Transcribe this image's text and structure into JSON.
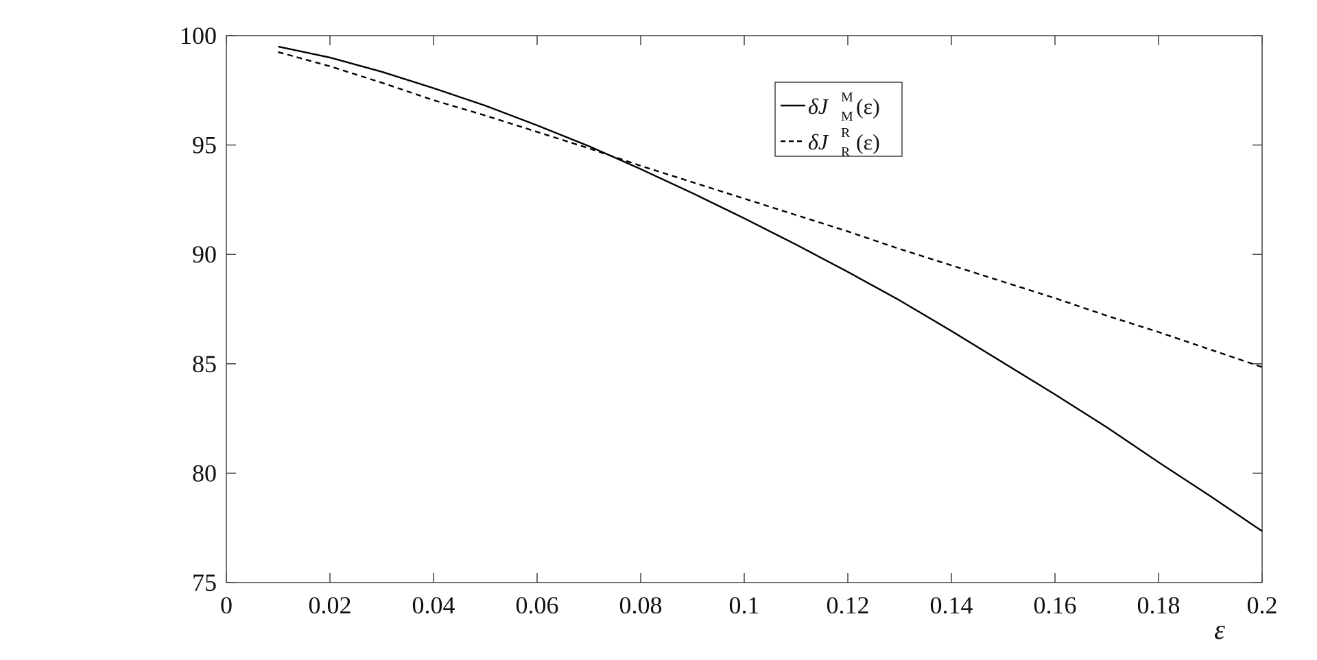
{
  "chart_data": {
    "type": "line",
    "xlabel": "ε",
    "ylabel": "",
    "xlim": [
      0,
      0.2
    ],
    "ylim": [
      75,
      100
    ],
    "xticks": [
      0,
      0.02,
      0.04,
      0.06,
      0.08,
      0.1,
      0.12,
      0.14,
      0.16,
      0.18,
      0.2
    ],
    "xtick_labels": [
      "0",
      "0.02",
      "0.04",
      "0.06",
      "0.08",
      "0.1",
      "0.12",
      "0.14",
      "0.16",
      "0.18",
      "0.2"
    ],
    "yticks": [
      75,
      80,
      85,
      90,
      95,
      100
    ],
    "ytick_labels": [
      "75",
      "80",
      "85",
      "90",
      "95",
      "100"
    ],
    "grid": false,
    "legend_position": "top-center",
    "series": [
      {
        "name": "δJ_M^M(ε)",
        "style": "solid",
        "color": "#000000",
        "x": [
          0.01,
          0.02,
          0.03,
          0.04,
          0.05,
          0.06,
          0.07,
          0.08,
          0.09,
          0.1,
          0.11,
          0.12,
          0.13,
          0.14,
          0.15,
          0.16,
          0.17,
          0.18,
          0.19,
          0.2
        ],
        "y": [
          99.5,
          99.0,
          98.35,
          97.6,
          96.8,
          95.9,
          94.95,
          93.9,
          92.8,
          91.65,
          90.45,
          89.2,
          87.9,
          86.5,
          85.05,
          83.6,
          82.1,
          80.5,
          78.95,
          77.35
        ]
      },
      {
        "name": "δJ_R^R(ε)",
        "style": "dashed",
        "color": "#000000",
        "x": [
          0.01,
          0.02,
          0.03,
          0.04,
          0.05,
          0.06,
          0.07,
          0.08,
          0.09,
          0.1,
          0.11,
          0.12,
          0.13,
          0.14,
          0.15,
          0.16,
          0.17,
          0.18,
          0.19,
          0.2
        ],
        "y": [
          99.25,
          98.6,
          97.85,
          97.05,
          96.35,
          95.6,
          94.85,
          94.05,
          93.3,
          92.55,
          91.8,
          91.05,
          90.25,
          89.5,
          88.75,
          88.0,
          87.2,
          86.45,
          85.65,
          84.85
        ]
      }
    ],
    "legend": {
      "entries": [
        {
          "prefix": "δJ",
          "sup": "M",
          "sub": "M",
          "suffix": "(ε)",
          "style": "solid"
        },
        {
          "prefix": "δJ",
          "sup": "R",
          "sub": "R",
          "suffix": "(ε)",
          "style": "dashed"
        }
      ]
    }
  }
}
